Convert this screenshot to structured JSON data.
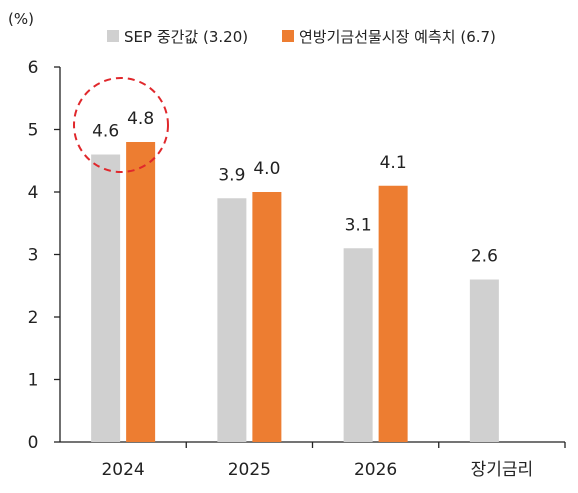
{
  "chart_data": {
    "type": "bar",
    "y_unit": "(%)",
    "categories": [
      "2024",
      "2025",
      "2026",
      "장기금리"
    ],
    "series": [
      {
        "name": "SEP 중간값 (3.20)",
        "color": "#d0d0d0",
        "values": [
          4.6,
          3.9,
          3.1,
          2.6
        ]
      },
      {
        "name": "연방기금선물시장 예측치 (6.7)",
        "color": "#ed7d31",
        "values": [
          4.8,
          4.0,
          4.1,
          null
        ]
      }
    ],
    "data_labels": [
      [
        "4.6",
        "3.9",
        "3.1",
        "2.6"
      ],
      [
        "4.8",
        "4.0",
        "4.1",
        null
      ]
    ],
    "y_ticks": [
      "0",
      "1",
      "2",
      "3",
      "4",
      "5",
      "6"
    ],
    "ylim": [
      0,
      6
    ],
    "grid": false,
    "legend_position": "top",
    "highlight": {
      "category": "2024",
      "shape": "dashed-circle",
      "color": "#e0282c"
    }
  }
}
